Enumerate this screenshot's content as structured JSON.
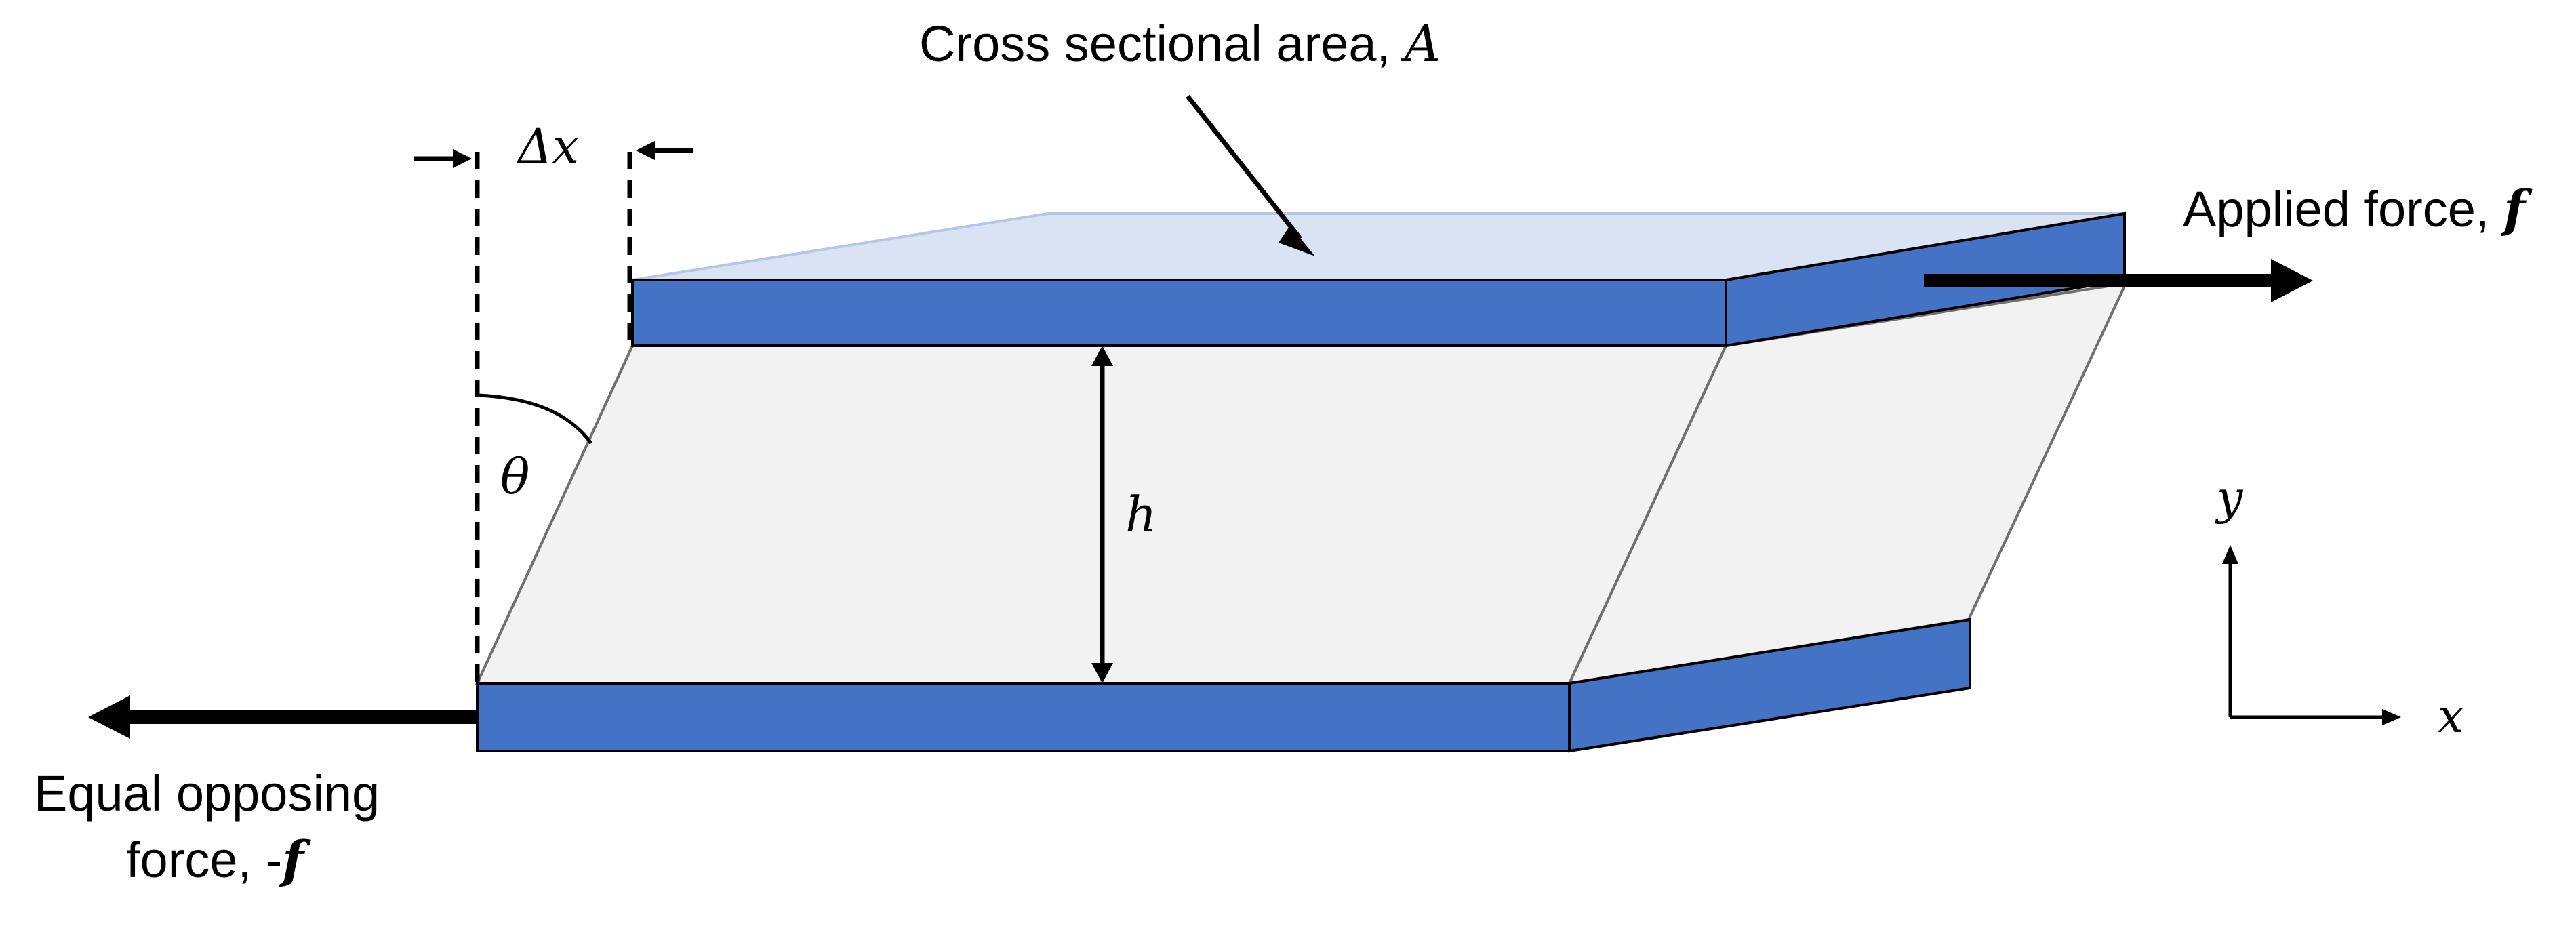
{
  "labels": {
    "cross_section_text": "Cross sectional area, ",
    "cross_section_symbol": "A",
    "applied_force_text": "Applied force, ",
    "applied_force_symbol": "f",
    "opposing_line1": "Equal opposing",
    "opposing_line2_text": "force, -",
    "opposing_symbol": "f",
    "delta_x": "Δx",
    "theta": "θ",
    "height": "h",
    "axis_y": "y",
    "axis_x": "x"
  },
  "colors": {
    "plate_blue": "#4472C4",
    "top_face": "#DAE3F3",
    "sheared_body": "#F2F2F2",
    "outline": "#000000",
    "thin_edge": "#707070"
  }
}
